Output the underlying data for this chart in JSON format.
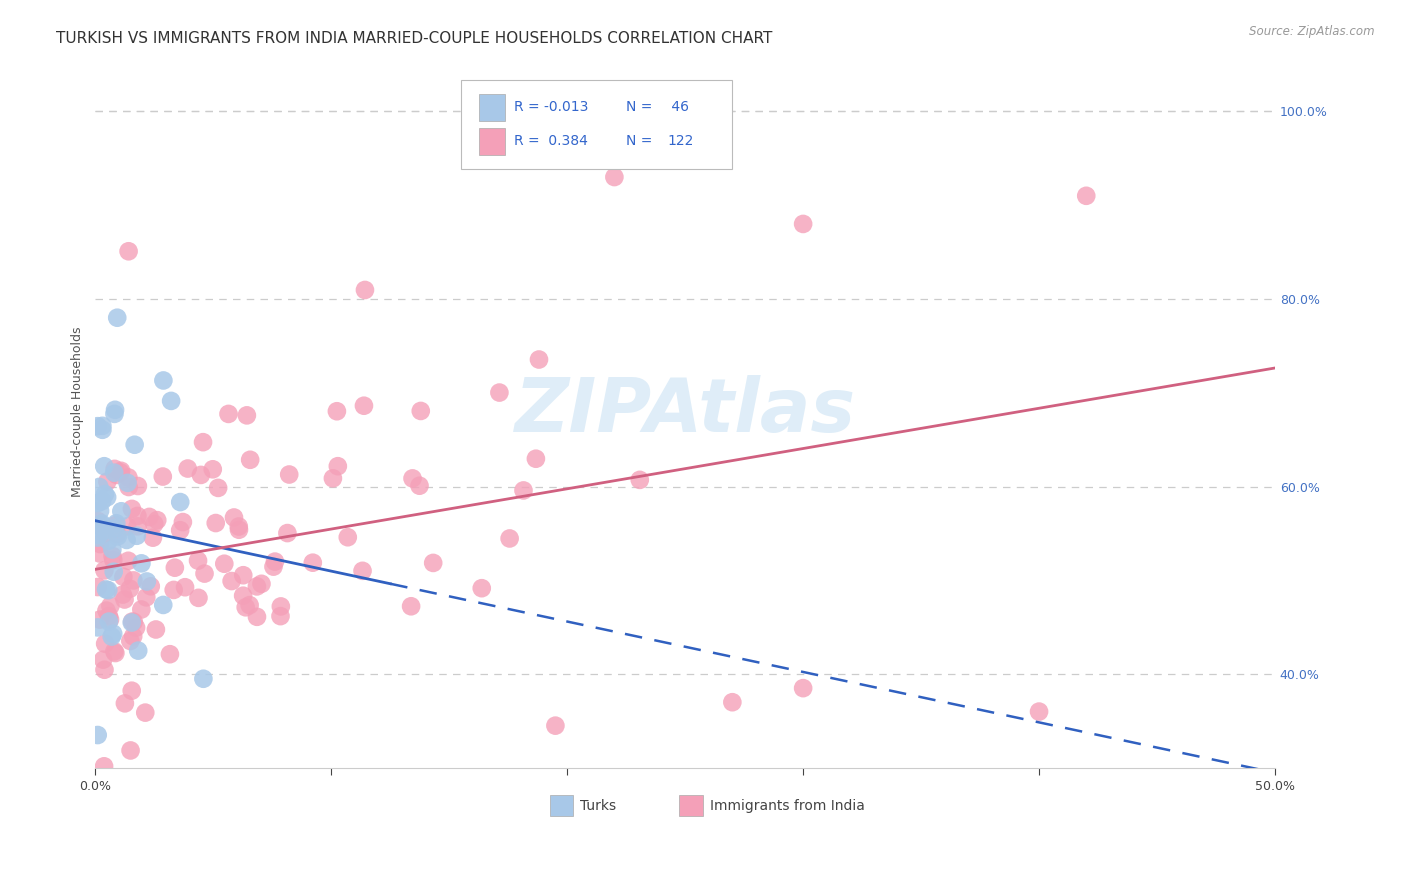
{
  "title": "TURKISH VS IMMIGRANTS FROM INDIA MARRIED-COUPLE HOUSEHOLDS CORRELATION CHART",
  "source": "Source: ZipAtlas.com",
  "ylabel": "Married-couple Households",
  "xlim": [
    0.0,
    0.5
  ],
  "ylim": [
    0.3,
    1.06
  ],
  "yticks_right": [
    0.4,
    0.6,
    0.8,
    1.0
  ],
  "ytick_labels_right": [
    "40.0%",
    "60.0%",
    "80.0%",
    "100.0%"
  ],
  "turks_R": -0.013,
  "turks_N": 46,
  "india_R": 0.384,
  "india_N": 122,
  "turk_color": "#a8c8e8",
  "india_color": "#f4a0b8",
  "turk_line_color": "#3060c0",
  "india_line_color": "#d06080",
  "background_color": "#ffffff",
  "grid_color": "#cccccc",
  "title_fontsize": 11,
  "axis_label_fontsize": 9,
  "tick_fontsize": 9
}
